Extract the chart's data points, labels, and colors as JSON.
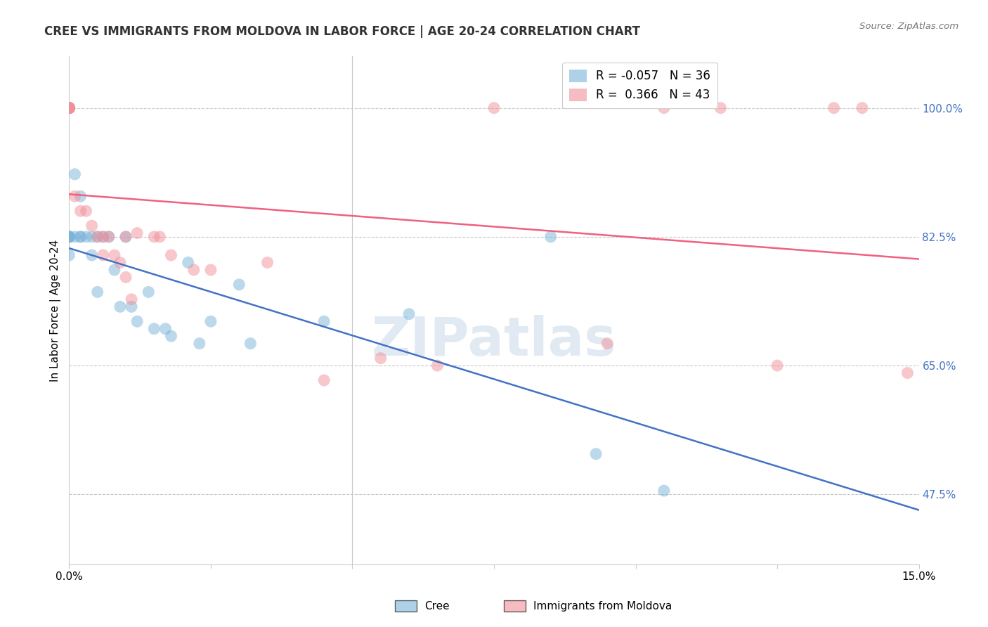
{
  "title": "CREE VS IMMIGRANTS FROM MOLDOVA IN LABOR FORCE | AGE 20-24 CORRELATION CHART",
  "source": "Source: ZipAtlas.com",
  "ylabel": "In Labor Force | Age 20-24",
  "y_ticks": [
    47.5,
    65.0,
    82.5,
    100.0
  ],
  "y_tick_labels": [
    "47.5%",
    "65.0%",
    "82.5%",
    "100.0%"
  ],
  "x_ticks": [
    0.0,
    2.5,
    5.0,
    7.5,
    10.0,
    12.5,
    15.0
  ],
  "xlim": [
    0.0,
    15.0
  ],
  "ylim": [
    38.0,
    107.0
  ],
  "cree_color": "#7ab3d9",
  "moldova_color": "#f0909a",
  "cree_line_color": "#4472c4",
  "moldova_line_color": "#f06080",
  "cree_legend_label": "R = -0.057   N = 36",
  "moldova_legend_label": "R =  0.366   N = 43",
  "watermark": "ZIPatlas",
  "cree_points": [
    [
      0.0,
      82.5
    ],
    [
      0.0,
      82.5
    ],
    [
      0.0,
      82.5
    ],
    [
      0.0,
      80.0
    ],
    [
      0.0,
      82.5
    ],
    [
      0.1,
      91.0
    ],
    [
      0.1,
      82.5
    ],
    [
      0.2,
      88.0
    ],
    [
      0.2,
      82.5
    ],
    [
      0.2,
      82.5
    ],
    [
      0.3,
      82.5
    ],
    [
      0.4,
      82.5
    ],
    [
      0.4,
      80.0
    ],
    [
      0.5,
      82.5
    ],
    [
      0.5,
      75.0
    ],
    [
      0.6,
      82.5
    ],
    [
      0.7,
      82.5
    ],
    [
      0.8,
      78.0
    ],
    [
      0.9,
      73.0
    ],
    [
      1.0,
      82.5
    ],
    [
      1.1,
      73.0
    ],
    [
      1.2,
      71.0
    ],
    [
      1.4,
      75.0
    ],
    [
      1.5,
      70.0
    ],
    [
      1.7,
      70.0
    ],
    [
      1.8,
      69.0
    ],
    [
      2.1,
      79.0
    ],
    [
      2.3,
      68.0
    ],
    [
      2.5,
      71.0
    ],
    [
      3.0,
      76.0
    ],
    [
      3.2,
      68.0
    ],
    [
      4.5,
      71.0
    ],
    [
      6.0,
      72.0
    ],
    [
      8.5,
      82.5
    ],
    [
      9.3,
      53.0
    ],
    [
      10.5,
      48.0
    ]
  ],
  "moldova_points": [
    [
      0.0,
      100.0
    ],
    [
      0.0,
      100.0
    ],
    [
      0.0,
      100.0
    ],
    [
      0.0,
      100.0
    ],
    [
      0.0,
      100.0
    ],
    [
      0.0,
      100.0
    ],
    [
      0.0,
      100.0
    ],
    [
      0.0,
      100.0
    ],
    [
      0.0,
      100.0
    ],
    [
      0.0,
      100.0
    ],
    [
      0.0,
      100.0
    ],
    [
      0.0,
      100.0
    ],
    [
      0.1,
      88.0
    ],
    [
      0.2,
      86.0
    ],
    [
      0.3,
      86.0
    ],
    [
      0.4,
      84.0
    ],
    [
      0.5,
      82.5
    ],
    [
      0.6,
      82.5
    ],
    [
      0.6,
      80.0
    ],
    [
      0.7,
      82.5
    ],
    [
      0.8,
      80.0
    ],
    [
      0.9,
      79.0
    ],
    [
      1.0,
      82.5
    ],
    [
      1.0,
      77.0
    ],
    [
      1.1,
      74.0
    ],
    [
      1.2,
      83.0
    ],
    [
      1.5,
      82.5
    ],
    [
      1.6,
      82.5
    ],
    [
      1.8,
      80.0
    ],
    [
      2.2,
      78.0
    ],
    [
      2.5,
      78.0
    ],
    [
      3.5,
      79.0
    ],
    [
      4.5,
      63.0
    ],
    [
      5.5,
      66.0
    ],
    [
      6.5,
      65.0
    ],
    [
      7.5,
      100.0
    ],
    [
      9.5,
      68.0
    ],
    [
      10.5,
      100.0
    ],
    [
      11.5,
      100.0
    ],
    [
      12.5,
      65.0
    ],
    [
      13.5,
      100.0
    ],
    [
      14.0,
      100.0
    ],
    [
      14.8,
      64.0
    ]
  ]
}
